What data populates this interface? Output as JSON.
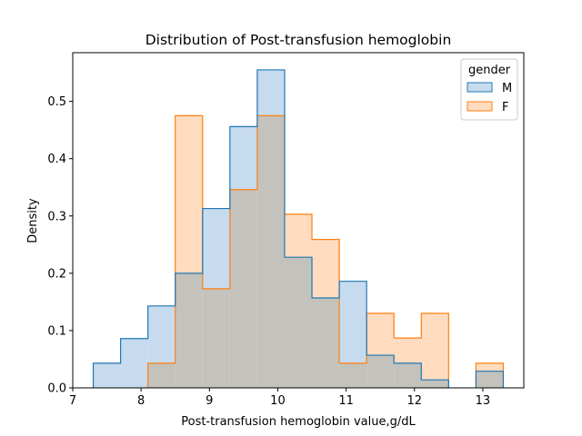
{
  "chart_data": {
    "type": "histogram",
    "title": "Distribution of Post-transfusion hemoglobin",
    "xlabel": "Post-transfusion hemoglobin value,g/dL",
    "ylabel": "Density",
    "xlim": [
      7,
      13.6
    ],
    "ylim": [
      0,
      0.585
    ],
    "xticks": [
      7,
      8,
      9,
      10,
      11,
      12,
      13
    ],
    "yticks": [
      0.0,
      0.1,
      0.2,
      0.3,
      0.4,
      0.5
    ],
    "xtick_labels": [
      "7",
      "8",
      "9",
      "10",
      "11",
      "12",
      "13"
    ],
    "ytick_labels": [
      "0.0",
      "0.1",
      "0.2",
      "0.3",
      "0.4",
      "0.5"
    ],
    "grid": false,
    "legend": {
      "title": "gender",
      "placement": "top-right"
    },
    "bin_edges": [
      7.3,
      7.7,
      8.1,
      8.5,
      8.9,
      9.3,
      9.7,
      10.1,
      10.5,
      10.9,
      11.3,
      11.7,
      12.1,
      12.5,
      12.9,
      13.3
    ],
    "series": [
      {
        "name": "M",
        "color": "#1f77b4",
        "fill": "#c6dbed",
        "values": [
          0.043,
          0.086,
          0.143,
          0.2,
          0.313,
          0.456,
          0.555,
          0.228,
          0.157,
          0.186,
          0.057,
          0.043,
          0.014,
          0.0,
          0.029
        ]
      },
      {
        "name": "F",
        "color": "#ff7f0e",
        "fill": "#ffdcc0",
        "values": [
          0.0,
          0.0,
          0.043,
          0.475,
          0.173,
          0.346,
          0.475,
          0.303,
          0.259,
          0.043,
          0.13,
          0.087,
          0.13,
          0.0,
          0.043
        ]
      }
    ],
    "overlap_fill": "#c4c2bc"
  }
}
